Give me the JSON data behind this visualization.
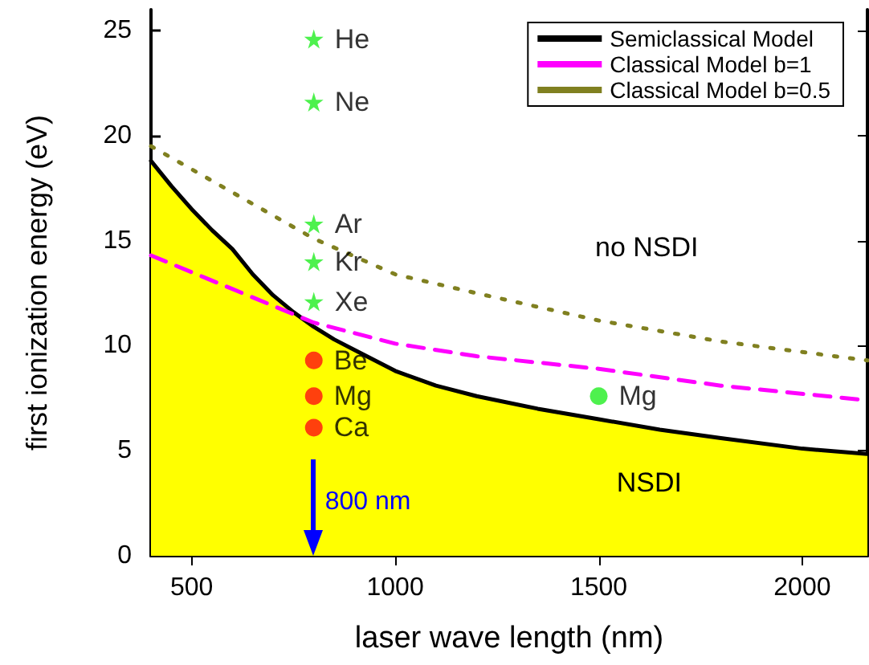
{
  "chart_data": {
    "type": "line",
    "xlabel": "laser wave length (nm)",
    "ylabel": "first ionization energy (eV)",
    "xlim": [
      400,
      2160
    ],
    "xticks": [
      500,
      1000,
      1500,
      2000
    ],
    "ylim": [
      0,
      26
    ],
    "yticks": [
      0,
      5,
      10,
      15,
      20,
      25
    ],
    "grid": false,
    "legend": "top right",
    "series": [
      {
        "name": "Semiclassical Model",
        "type": "area",
        "line_style": "solid",
        "color": "#000000",
        "x": [
          400,
          450,
          500,
          550,
          600,
          650,
          700,
          750,
          800,
          850,
          900,
          1000,
          1100,
          1200,
          1350,
          1500,
          1650,
          1800,
          2000,
          2160
        ],
        "values": [
          18.8,
          17.6,
          16.5,
          15.5,
          14.6,
          13.4,
          12.4,
          11.6,
          10.9,
          10.3,
          9.8,
          8.8,
          8.1,
          7.6,
          7.0,
          6.5,
          6.0,
          5.6,
          5.1,
          4.85
        ]
      },
      {
        "name": "Classical Model b=1",
        "line_style": "dashed",
        "color": "#ff00ff",
        "x": [
          400,
          800,
          1000,
          1200,
          1500,
          1800,
          2160
        ],
        "values": [
          14.3,
          11.1,
          10.1,
          9.5,
          8.9,
          8.1,
          7.4
        ]
      },
      {
        "name": "Classical Model b=0.5",
        "line_style": "dotted",
        "color": "#808020",
        "x": [
          400,
          800,
          1000,
          1200,
          1500,
          1800,
          2160
        ],
        "values": [
          19.5,
          15.1,
          13.4,
          12.5,
          11.2,
          10.2,
          9.3
        ]
      },
      {
        "type": "scatter",
        "marker": "star",
        "color": "#22ee22",
        "x": [
          800,
          800,
          800,
          800,
          800
        ],
        "values": [
          24.6,
          21.6,
          15.8,
          14.0,
          12.1
        ],
        "value_labels": [
          "He",
          "Ne",
          "Ar",
          "Kr",
          "Xe"
        ]
      },
      {
        "type": "scatter",
        "marker": "circle",
        "color": "#ff1010",
        "x": [
          800,
          800,
          800
        ],
        "values": [
          9.3,
          7.6,
          6.1
        ],
        "value_labels": [
          "Be",
          "Mg",
          "Ca"
        ]
      },
      {
        "type": "scatter",
        "marker": "circle",
        "color": "#22ee22",
        "x": [
          1500
        ],
        "values": [
          7.6
        ],
        "value_labels": [
          "Mg"
        ]
      }
    ],
    "annotations": [
      "no NSDI",
      "NSDI"
    ],
    "ref_lines": [
      {
        "axis": "x",
        "value": 800,
        "label": "800 nm",
        "color": "#0000ff"
      }
    ]
  }
}
